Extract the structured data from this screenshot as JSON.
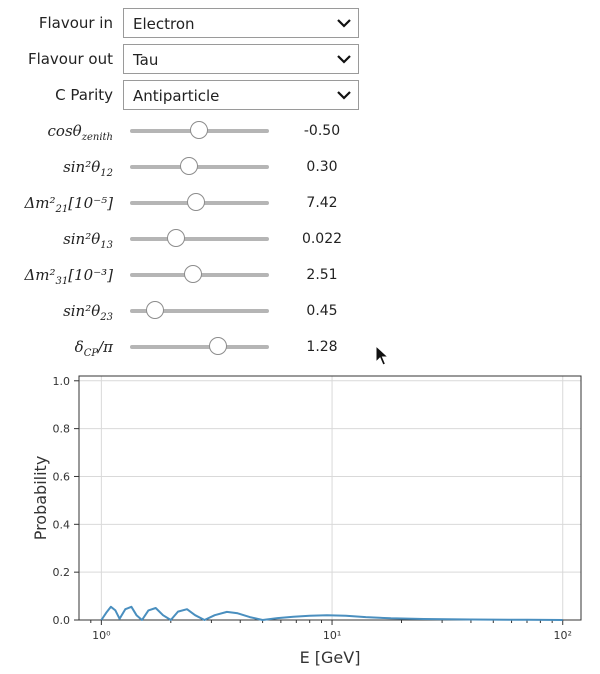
{
  "controls": {
    "flavour_in": {
      "label": "Flavour in",
      "value": "Electron"
    },
    "flavour_out": {
      "label": "Flavour out",
      "value": "Tau"
    },
    "c_parity": {
      "label": "C Parity",
      "value": "Antiparticle"
    }
  },
  "sliders": [
    {
      "name": "cos-zenith",
      "label_main": "cosθ",
      "label_sub": "zenith",
      "readout": "-0.50",
      "fraction": 0.5
    },
    {
      "name": "sin2-theta12",
      "label_main": "sin²θ",
      "label_sub": "12",
      "readout": "0.30",
      "fraction": 0.43
    },
    {
      "name": "dm21",
      "label_main": "Δm²",
      "label_sub": "21",
      "label_bracket": "[10⁻⁵]",
      "readout": "7.42",
      "fraction": 0.48
    },
    {
      "name": "sin2-theta13",
      "label_main": "sin²θ",
      "label_sub": "13",
      "readout": "0.022",
      "fraction": 0.34
    },
    {
      "name": "dm31",
      "label_main": "Δm²",
      "label_sub": "31",
      "label_bracket": "[10⁻³]",
      "readout": "2.51",
      "fraction": 0.46
    },
    {
      "name": "sin2-theta23",
      "label_main": "sin²θ",
      "label_sub": "23",
      "readout": "0.45",
      "fraction": 0.19
    },
    {
      "name": "delta-cp",
      "label_main": "δ",
      "label_sub": "CP",
      "label_tail": "/π",
      "readout": "1.28",
      "fraction": 0.64
    }
  ],
  "chart_data": {
    "type": "line",
    "xlabel": "E [GeV]",
    "ylabel": "Probability",
    "xscale": "log",
    "xlim": [
      0.8,
      120
    ],
    "ylim": [
      0,
      1.02
    ],
    "xticks": [
      {
        "value": 1,
        "label": "10⁰"
      },
      {
        "value": 10,
        "label": "10¹"
      },
      {
        "value": 100,
        "label": "10²"
      }
    ],
    "yticks": [
      {
        "value": 0,
        "label": "0.0"
      },
      {
        "value": 0.2,
        "label": "0.2"
      },
      {
        "value": 0.4,
        "label": "0.4"
      },
      {
        "value": 0.6,
        "label": "0.6"
      },
      {
        "value": 0.8,
        "label": "0.8"
      },
      {
        "value": 1.0,
        "label": "1.0"
      }
    ],
    "grid": true,
    "line_color": "#4a8fbf",
    "series": [
      {
        "x": [
          1.0,
          1.05,
          1.1,
          1.15,
          1.2,
          1.27,
          1.35,
          1.42,
          1.5,
          1.6,
          1.72,
          1.85,
          2.0,
          2.15,
          2.35,
          2.55,
          2.8,
          3.1,
          3.5,
          3.9,
          4.4,
          5.0,
          5.8,
          6.8,
          8.0,
          9.5,
          11.5,
          14,
          18,
          25,
          40,
          70,
          100
        ],
        "y": [
          0.0,
          0.03,
          0.055,
          0.04,
          0.005,
          0.045,
          0.055,
          0.02,
          0.0,
          0.04,
          0.05,
          0.02,
          0.0,
          0.035,
          0.045,
          0.02,
          0.0,
          0.02,
          0.034,
          0.028,
          0.012,
          0.0,
          0.008,
          0.014,
          0.018,
          0.02,
          0.018,
          0.012,
          0.007,
          0.004,
          0.002,
          0.001,
          0.0
        ]
      }
    ]
  }
}
